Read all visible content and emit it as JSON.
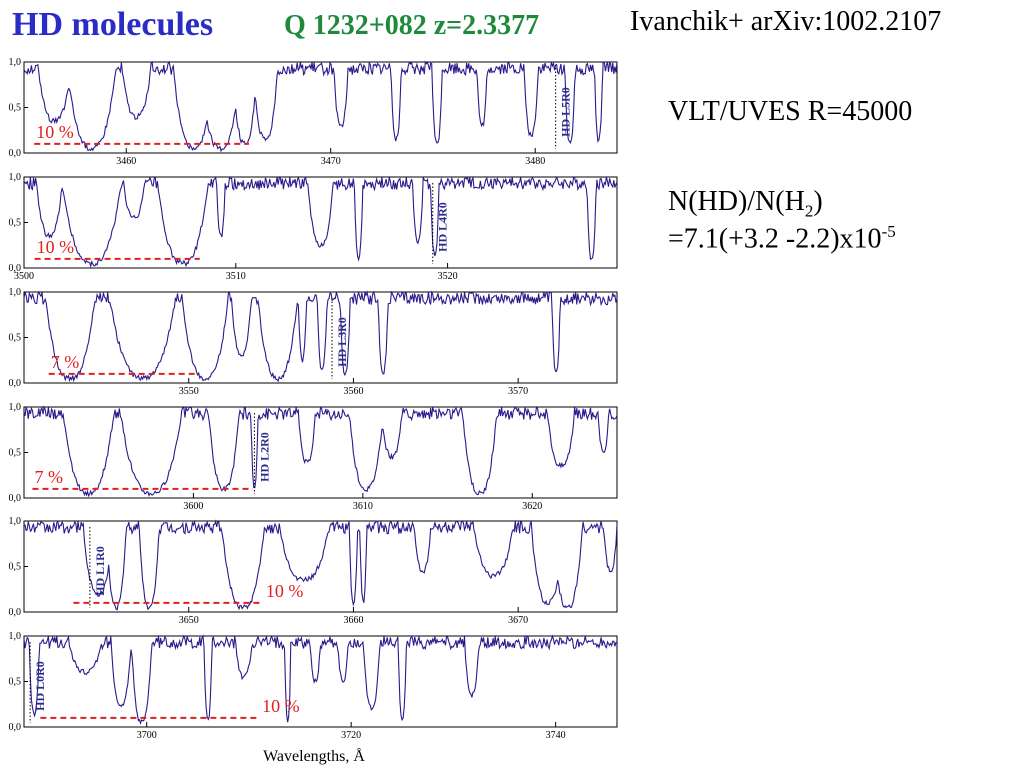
{
  "header": {
    "title": "HD molecules",
    "object": "Q 1232+082 z=2.3377",
    "reference": "Ivanchik+ arXiv:1002.2107"
  },
  "notes": {
    "instrument": "VLT/UVES R=45000",
    "ratio_label_pre": "N(HD)/N(H",
    "ratio_label_sub": "2",
    "ratio_label_post": ")",
    "ratio_value_pre": "=7.1(+3.2 -2.2)x10",
    "ratio_value_sup": "-5"
  },
  "chart_data": {
    "type": "line",
    "xlabel": "Wavelengths,  Å",
    "ylim": [
      0,
      1
    ],
    "y_ticks": [
      "0,0",
      "0,5",
      "1,0"
    ],
    "panels": [
      {
        "xlim": [
          3455,
          3484
        ],
        "x_ticks": [
          3460,
          3470,
          3480
        ],
        "label": "HD L5R0",
        "label_x": 3481,
        "percent": "10 %",
        "pct_at": [
          3455.5,
          3466
        ],
        "pct_pos": "left",
        "dips": [
          [
            3456.5,
            0.8,
            0.35
          ],
          [
            3458.3,
            1.2,
            0.05
          ],
          [
            3460.5,
            0.7,
            0.4
          ],
          [
            3463.3,
            1.0,
            0.05
          ],
          [
            3464.6,
            1.0,
            0.05
          ],
          [
            3465.8,
            0.6,
            0.1
          ],
          [
            3466.8,
            0.6,
            0.15
          ],
          [
            3470.5,
            0.35,
            0.3
          ],
          [
            3473.2,
            0.25,
            0.15
          ],
          [
            3475.2,
            0.25,
            0.1
          ],
          [
            3477.4,
            0.25,
            0.3
          ],
          [
            3479.8,
            0.35,
            0.2
          ],
          [
            3481.7,
            0.25,
            0.1
          ],
          [
            3483.1,
            0.2,
            0.15
          ]
        ]
      },
      {
        "xlim": [
          3500,
          3528
        ],
        "x_ticks": [
          3500,
          3510,
          3520
        ],
        "label": "HD L4R0",
        "label_x": 3519.3,
        "percent": "10 %",
        "pct_at": [
          3500.5,
          3508.3
        ],
        "pct_pos": "left",
        "dips": [
          [
            3501.2,
            0.6,
            0.35
          ],
          [
            3503.2,
            1.4,
            0.05
          ],
          [
            3505.2,
            0.5,
            0.55
          ],
          [
            3507.5,
            1.2,
            0.05
          ],
          [
            3509.3,
            0.2,
            0.35
          ],
          [
            3514.0,
            0.6,
            0.25
          ],
          [
            3515.8,
            0.2,
            0.1
          ],
          [
            3518.6,
            0.25,
            0.3
          ],
          [
            3519.4,
            0.2,
            0.15
          ],
          [
            3526.8,
            0.22,
            0.1
          ]
        ]
      },
      {
        "xlim": [
          3540,
          3576
        ],
        "x_ticks": [
          3550,
          3560,
          3570
        ],
        "label": "HD L3R0",
        "label_x": 3558.7,
        "percent": "7 %",
        "pct_at": [
          3541.5,
          3550.5
        ],
        "pct_pos": "left",
        "dips": [
          [
            3542.8,
            1.5,
            0.05
          ],
          [
            3547.2,
            2.0,
            0.05
          ],
          [
            3551.0,
            1.4,
            0.05
          ],
          [
            3553.2,
            0.6,
            0.3
          ],
          [
            3555.4,
            1.2,
            0.05
          ],
          [
            3556.9,
            0.25,
            0.25
          ],
          [
            3558.1,
            0.3,
            0.15
          ],
          [
            3559.5,
            0.3,
            0.1
          ],
          [
            3561.8,
            0.3,
            0.1
          ],
          [
            3572.3,
            0.25,
            0.1
          ]
        ]
      },
      {
        "xlim": [
          3590,
          3625
        ],
        "x_ticks": [
          3600,
          3610,
          3620
        ],
        "label": "HD L2R0",
        "label_x": 3603.6,
        "percent": "7 %",
        "pct_at": [
          3590.5,
          3603.5
        ],
        "pct_pos": "left",
        "dips": [
          [
            3593.8,
            1.5,
            0.05
          ],
          [
            3597.5,
            1.8,
            0.05
          ],
          [
            3601.8,
            0.9,
            0.1
          ],
          [
            3603.6,
            0.2,
            0.1
          ],
          [
            3606.7,
            0.5,
            0.4
          ],
          [
            3610.2,
            1.0,
            0.1
          ],
          [
            3611.7,
            0.6,
            0.45
          ],
          [
            3616.9,
            1.0,
            0.05
          ],
          [
            3621.7,
            0.8,
            0.35
          ],
          [
            3624.2,
            0.3,
            0.5
          ]
        ]
      },
      {
        "xlim": [
          3640,
          3676
        ],
        "x_ticks": [
          3650,
          3660,
          3670
        ],
        "label": "HD L1R0",
        "label_x": 3644,
        "percent": "10 %",
        "pct_at": [
          3643,
          3654.5
        ],
        "pct_pos": "right",
        "dips": [
          [
            3644.5,
            0.9,
            0.2
          ],
          [
            3645.6,
            0.6,
            0.05
          ],
          [
            3647.6,
            0.6,
            0.05
          ],
          [
            3653.3,
            1.3,
            0.05
          ],
          [
            3657.0,
            1.5,
            0.35
          ],
          [
            3660.0,
            0.25,
            0.1
          ],
          [
            3660.6,
            0.2,
            0.1
          ],
          [
            3664.2,
            0.5,
            0.45
          ],
          [
            3668.5,
            1.2,
            0.4
          ],
          [
            3671.8,
            1.0,
            0.1
          ],
          [
            3673.0,
            0.9,
            0.05
          ],
          [
            3675.6,
            0.4,
            0.45
          ]
        ]
      },
      {
        "xlim": [
          3688,
          3746
        ],
        "x_ticks": [
          3700,
          3720,
          3740
        ],
        "label": "HD L0R0",
        "label_x": 3688.6,
        "percent": "10 %",
        "pct_at": [
          3689.6,
          3711
        ],
        "pct_pos": "right",
        "dips": [
          [
            3689.0,
            0.5,
            0.15
          ],
          [
            3694.0,
            1.6,
            0.6
          ],
          [
            3697.5,
            1.0,
            0.25
          ],
          [
            3699.5,
            1.0,
            0.05
          ],
          [
            3706.0,
            0.4,
            0.1
          ],
          [
            3709.5,
            0.8,
            0.55
          ],
          [
            3713.8,
            0.3,
            0.05
          ],
          [
            3716.5,
            0.5,
            0.5
          ],
          [
            3719.2,
            0.5,
            0.5
          ],
          [
            3722.0,
            0.8,
            0.2
          ],
          [
            3725.0,
            0.4,
            0.1
          ],
          [
            3731.8,
            0.7,
            0.35
          ]
        ]
      }
    ]
  }
}
